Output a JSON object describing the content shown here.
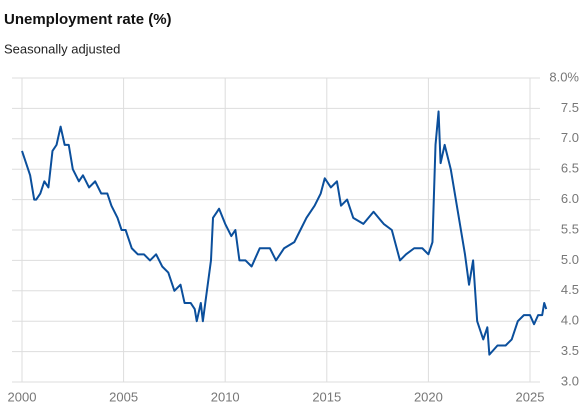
{
  "chart_data": {
    "type": "line",
    "title": "Unemployment rate (%)",
    "subtitle": "Seasonally adjusted",
    "x": [
      2000.0,
      2000.2,
      2000.4,
      2000.6,
      2000.7,
      2000.9,
      2001.1,
      2001.3,
      2001.5,
      2001.7,
      2001.9,
      2002.1,
      2002.3,
      2002.5,
      2002.8,
      2003.0,
      2003.3,
      2003.6,
      2003.9,
      2004.2,
      2004.4,
      2004.7,
      2004.9,
      2005.1,
      2005.4,
      2005.7,
      2006.0,
      2006.3,
      2006.6,
      2006.9,
      2007.2,
      2007.5,
      2007.8,
      2008.0,
      2008.3,
      2008.5,
      2008.6,
      2008.8,
      2008.9,
      2009.1,
      2009.3,
      2009.4,
      2009.6,
      2009.7,
      2010.0,
      2010.3,
      2010.5,
      2010.7,
      2011.0,
      2011.3,
      2011.7,
      2012.2,
      2012.5,
      2012.9,
      2013.4,
      2013.7,
      2014.0,
      2014.4,
      2014.7,
      2014.9,
      2015.2,
      2015.5,
      2015.7,
      2016.0,
      2016.3,
      2016.8,
      2017.3,
      2017.8,
      2018.2,
      2018.6,
      2018.9,
      2019.3,
      2019.7,
      2020.0,
      2020.2,
      2020.35,
      2020.5,
      2020.6,
      2020.8,
      2021.1,
      2021.5,
      2021.8,
      2022.0,
      2022.2,
      2022.4,
      2022.7,
      2022.9,
      2023.0,
      2023.4,
      2023.8,
      2024.1,
      2024.4,
      2024.7,
      2025.0,
      2025.2,
      2025.4,
      2025.6,
      2025.7,
      2025.8
    ],
    "series": [
      {
        "name": "Unemployment rate",
        "color": "#0b4f9c",
        "values": [
          6.8,
          6.6,
          6.4,
          6.0,
          6.0,
          6.1,
          6.3,
          6.2,
          6.8,
          6.9,
          7.2,
          6.9,
          6.9,
          6.5,
          6.3,
          6.4,
          6.2,
          6.3,
          6.1,
          6.1,
          5.9,
          5.7,
          5.5,
          5.5,
          5.2,
          5.1,
          5.1,
          5.0,
          5.1,
          4.9,
          4.8,
          4.5,
          4.6,
          4.3,
          4.3,
          4.2,
          4.0,
          4.3,
          4.0,
          4.5,
          5.0,
          5.7,
          5.8,
          5.85,
          5.6,
          5.4,
          5.5,
          5.0,
          5.0,
          4.9,
          5.2,
          5.2,
          5.0,
          5.2,
          5.3,
          5.5,
          5.7,
          5.9,
          6.1,
          6.35,
          6.2,
          6.3,
          5.9,
          6.0,
          5.7,
          5.6,
          5.8,
          5.6,
          5.5,
          5.0,
          5.1,
          5.2,
          5.2,
          5.1,
          5.3,
          6.9,
          7.45,
          6.6,
          6.9,
          6.5,
          5.7,
          5.1,
          4.6,
          5.0,
          4.0,
          3.7,
          3.9,
          3.45,
          3.6,
          3.6,
          3.7,
          4.0,
          4.1,
          4.1,
          3.95,
          4.1,
          4.1,
          4.3,
          4.2
        ]
      }
    ],
    "xlim": [
      2000,
      2025
    ],
    "xticks": [
      2000,
      2005,
      2010,
      2015,
      2020,
      2025
    ],
    "ylim": [
      3,
      8
    ],
    "yticks": [
      {
        "value": 8,
        "label": "8.0%"
      },
      {
        "value": 7.5,
        "label": "7.5"
      },
      {
        "value": 7,
        "label": "7.0"
      },
      {
        "value": 6.5,
        "label": "6.5"
      },
      {
        "value": 6,
        "label": "6.0"
      },
      {
        "value": 5.5,
        "label": "5.5"
      },
      {
        "value": 5,
        "label": "5.0"
      },
      {
        "value": 4.5,
        "label": "4.5"
      },
      {
        "value": 4,
        "label": "4.0"
      },
      {
        "value": 3.5,
        "label": "3.5"
      },
      {
        "value": 3,
        "label": "3.0"
      }
    ],
    "grid": true
  }
}
